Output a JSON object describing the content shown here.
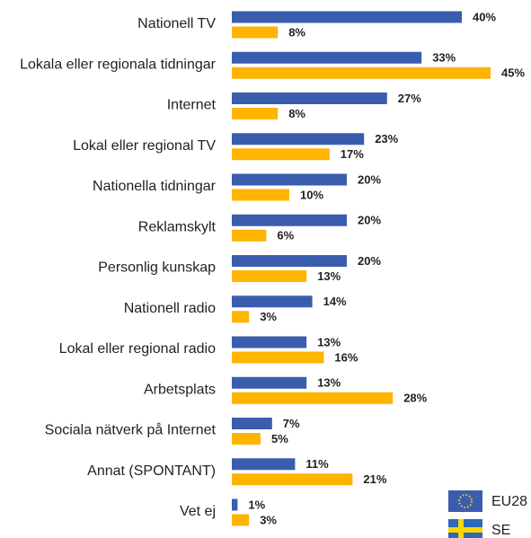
{
  "chart_data": {
    "type": "bar",
    "orientation": "horizontal",
    "categories": [
      "Nationell TV",
      "Lokala eller regionala tidningar",
      "Internet",
      "Lokal eller regional TV",
      "Nationella tidningar",
      "Reklamskylt",
      "Personlig kunskap",
      "Nationell radio",
      "Lokal eller regional radio",
      "Arbetsplats",
      "Sociala nätverk på Internet",
      "Annat (SPONTANT)",
      "Vet ej"
    ],
    "series": [
      {
        "name": "EU28",
        "color": "#3a5dae",
        "values": [
          40,
          33,
          27,
          23,
          20,
          20,
          20,
          14,
          13,
          13,
          7,
          11,
          1
        ],
        "value_labels": [
          "40%",
          "33%",
          "27%",
          "23%",
          "20%",
          "20%",
          "20%",
          "14%",
          "13%",
          "13%",
          "7%",
          "11%",
          "1%"
        ]
      },
      {
        "name": "SE",
        "color": "#ffb400",
        "values": [
          8,
          45,
          8,
          17,
          10,
          6,
          13,
          3,
          16,
          28,
          5,
          21,
          3
        ],
        "value_labels": [
          "8%",
          "45%",
          "8%",
          "17%",
          "10%",
          "6%",
          "13%",
          "3%",
          "16%",
          "28%",
          "5%",
          "21%",
          "3%"
        ]
      }
    ],
    "legend": "bottom-right"
  }
}
